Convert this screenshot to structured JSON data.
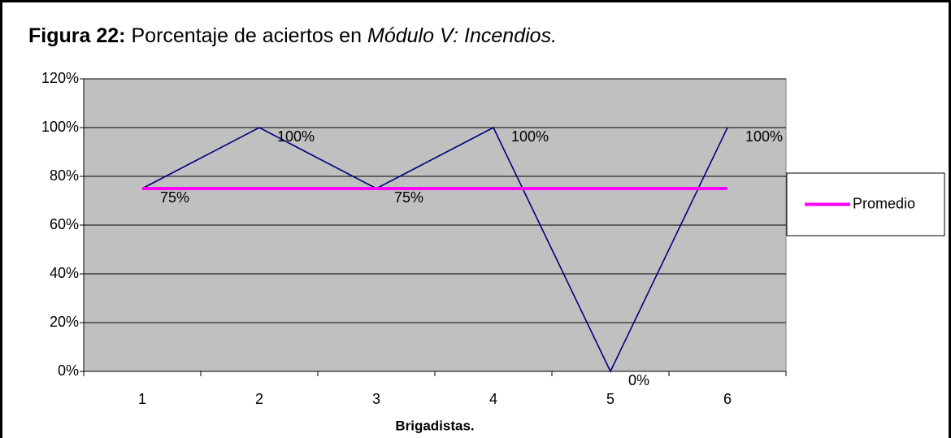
{
  "chart_data": {
    "type": "line",
    "title": [
      "Figura 22:",
      "Porcentaje de aciertos en",
      "Módulo V: Incendios."
    ],
    "x_label": "Brigadistas.",
    "categories": [
      "1",
      "2",
      "3",
      "4",
      "5",
      "6"
    ],
    "series": [
      {
        "color": "#000080",
        "values": [
          75,
          100,
          75,
          100,
          0,
          100
        ],
        "value_labels": [
          "75%",
          "100%",
          "75%",
          "100%",
          "0%",
          "100%"
        ]
      },
      {
        "name": "Promedio",
        "color": "#ff00ff",
        "values": [
          75,
          75,
          75,
          75,
          75,
          75
        ]
      }
    ],
    "ylim": [
      0,
      120
    ],
    "yticks": [
      {
        "value": 0,
        "label": "0%"
      },
      {
        "value": 20,
        "label": "20%"
      },
      {
        "value": 40,
        "label": "40%"
      },
      {
        "value": 60,
        "label": "60%"
      },
      {
        "value": 80,
        "label": "80%"
      },
      {
        "value": 100,
        "label": "100%"
      },
      {
        "value": 120,
        "label": "120%"
      }
    ],
    "grid": true,
    "legend": "right"
  }
}
